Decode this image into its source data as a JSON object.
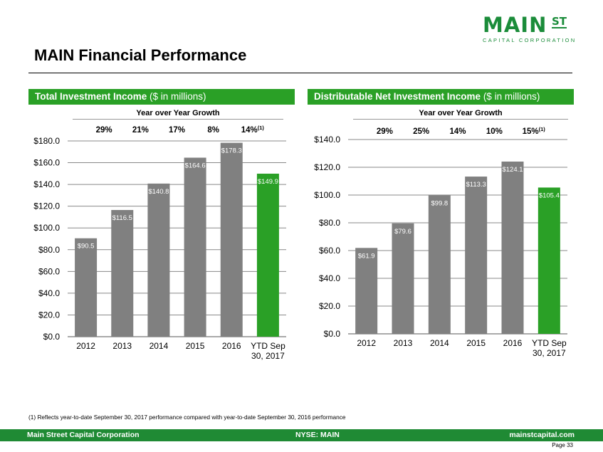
{
  "logo": {
    "main": "MAIN",
    "st": "ST",
    "sub": "CAPITAL CORPORATION",
    "color": "#1b8c3a"
  },
  "page_title": "MAIN Financial Performance",
  "panels": [
    {
      "header_bold": "Total Investment Income",
      "header_rest": " ($ in millions)"
    },
    {
      "header_bold": "Distributable Net Investment Income",
      "header_rest": " ($ in millions)"
    }
  ],
  "chart_data": [
    {
      "type": "bar",
      "title": "Total Investment Income ($ in millions)",
      "categories": [
        "2012",
        "2013",
        "2014",
        "2015",
        "2016",
        "YTD Sep 30, 2017"
      ],
      "values": [
        90.5,
        116.5,
        140.8,
        164.6,
        178.3,
        149.9
      ],
      "value_labels": [
        "$90.5",
        "$116.5",
        "$140.8",
        "$164.6",
        "$178.3",
        "$149.9"
      ],
      "bar_colors": [
        "#808080",
        "#808080",
        "#808080",
        "#808080",
        "#808080",
        "#2aa026"
      ],
      "ylim": [
        0,
        180
      ],
      "y_ticks": [
        0,
        20,
        40,
        60,
        80,
        100,
        120,
        140,
        160,
        180
      ],
      "y_tick_labels": [
        "$0.0",
        "$20.0",
        "$40.0",
        "$60.0",
        "$80.0",
        "$100.0",
        "$120.0",
        "$140.0",
        "$160.0",
        "$180.0"
      ],
      "grid": true,
      "growth_title": "Year over Year Growth",
      "growth": [
        "29%",
        "21%",
        "17%",
        "8%",
        "14%"
      ],
      "growth_footnote_mark": "(1)"
    },
    {
      "type": "bar",
      "title": "Distributable Net Investment Income ($ in millions)",
      "categories": [
        "2012",
        "2013",
        "2014",
        "2015",
        "2016",
        "YTD Sep 30, 2017"
      ],
      "values": [
        61.9,
        79.6,
        99.8,
        113.3,
        124.1,
        105.4
      ],
      "value_labels": [
        "$61.9",
        "$79.6",
        "$99.8",
        "$113.3",
        "$124.1",
        "$105.4"
      ],
      "bar_colors": [
        "#808080",
        "#808080",
        "#808080",
        "#808080",
        "#808080",
        "#2aa026"
      ],
      "ylim": [
        0,
        140
      ],
      "y_ticks": [
        0,
        20,
        40,
        60,
        80,
        100,
        120,
        140
      ],
      "y_tick_labels": [
        "$0.0",
        "$20.0",
        "$40.0",
        "$60.0",
        "$80.0",
        "$100.0",
        "$120.0",
        "$140.0"
      ],
      "grid": true,
      "growth_title": "Year over Year Growth",
      "growth": [
        "29%",
        "25%",
        "14%",
        "10%",
        "15%"
      ],
      "growth_footnote_mark": "(1)"
    }
  ],
  "footnote": "(1) Reflects year-to-date September 30, 2017 performance compared with year-to-date September 30, 2016 performance",
  "footer": {
    "left": "Main Street Capital Corporation",
    "center": "NYSE: MAIN",
    "right": "mainstcapital.com"
  },
  "page_number": "Page  33"
}
